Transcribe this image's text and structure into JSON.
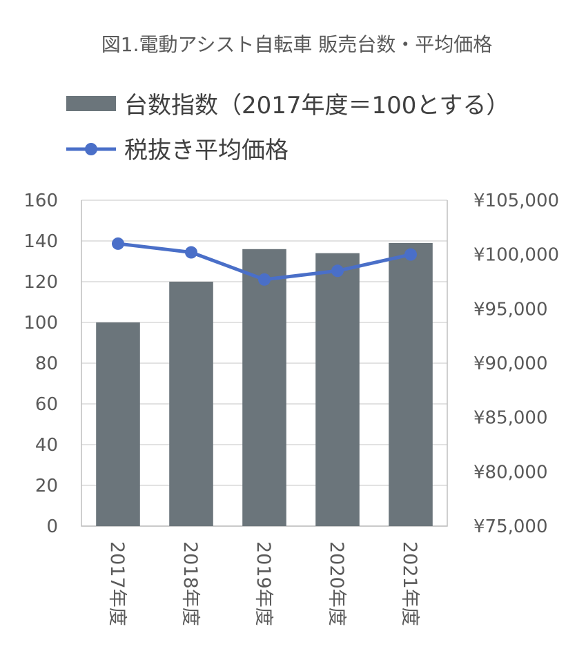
{
  "chart_data": {
    "type": "bar+line",
    "title": "図1.電動アシスト自転車 販売台数・平均価格",
    "categories": [
      "2017年度",
      "2018年度",
      "2019年度",
      "2020年度",
      "2021年度"
    ],
    "series": [
      {
        "name": "台数指数（2017年度＝100とする）",
        "type": "bar",
        "axis": "left",
        "color": "#6b757b",
        "values": [
          100,
          120,
          136,
          134,
          139
        ]
      },
      {
        "name": "税抜き平均価格",
        "type": "line",
        "axis": "right",
        "color": "#4a6fc8",
        "values": [
          101000,
          100200,
          97700,
          98500,
          100000
        ]
      }
    ],
    "left_axis": {
      "min": 0,
      "max": 160,
      "step": 20,
      "ticks": [
        "0",
        "20",
        "40",
        "60",
        "80",
        "100",
        "120",
        "140",
        "160"
      ]
    },
    "right_axis": {
      "min": 75000,
      "max": 105000,
      "step": 5000,
      "ticks": [
        "¥75,000",
        "¥80,000",
        "¥85,000",
        "¥90,000",
        "¥95,000",
        "¥100,000",
        "¥105,000"
      ]
    },
    "grid": true,
    "legend_position": "top-left"
  }
}
